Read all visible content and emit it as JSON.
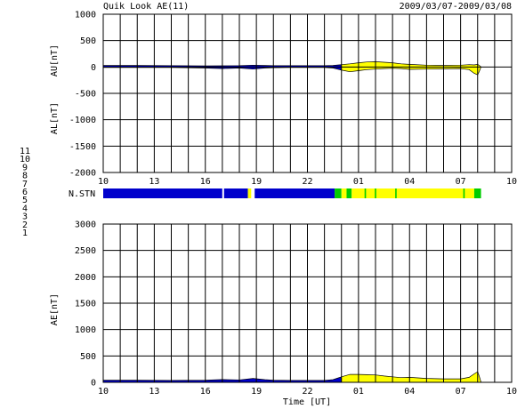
{
  "header": {
    "title": "Quik Look AE(11)",
    "date_range": "2009/03/07-2009/03/08"
  },
  "x_axis": {
    "label": "Time [UT]",
    "ticks": [
      "10",
      "13",
      "16",
      "19",
      "22",
      "01",
      "04",
      "07",
      "10"
    ]
  },
  "station_legend": {
    "items": [
      {
        "label": "11",
        "color": "#00d8ff"
      },
      {
        "label": "10",
        "color": "#ff00ff"
      },
      {
        "label": "9",
        "color": "#0000ff"
      },
      {
        "label": "8",
        "color": "#ffff66"
      },
      {
        "label": "7",
        "color": "#00cc00"
      },
      {
        "label": "6",
        "color": "#ff0000"
      },
      {
        "label": "5",
        "color": "#bbbbbb"
      },
      {
        "label": "4",
        "color": "#bbbbbb"
      },
      {
        "label": "3",
        "color": "#00bbbb"
      },
      {
        "label": "2",
        "color": "#cc00cc"
      },
      {
        "label": "1",
        "color": "#0000cc"
      }
    ]
  },
  "chart_data": [
    {
      "type": "area",
      "ylabels": [
        "AU[nT]",
        "AL[nT]"
      ],
      "yticks": [
        1000,
        500,
        0,
        -500,
        -1000,
        -1500,
        -2000
      ],
      "ylim": [
        -2000,
        1000
      ],
      "xlim": [
        10,
        34
      ],
      "grid": true,
      "colors": {
        "blue": "#0000cc",
        "yellow": "#ffff00",
        "green": "#00cc00"
      },
      "series": [
        {
          "x": [
            10,
            12,
            14,
            16,
            17,
            18,
            18.8,
            19.5,
            20,
            21,
            22,
            23,
            23.5,
            24,
            24.5,
            25,
            25.5,
            26,
            26.5,
            27,
            27.5,
            28,
            29,
            30,
            31,
            31.5,
            31.8,
            32,
            32.1,
            32.2
          ],
          "values": [
            30,
            30,
            25,
            20,
            22,
            25,
            35,
            30,
            25,
            25,
            25,
            25,
            30,
            45,
            60,
            80,
            95,
            100,
            90,
            80,
            60,
            50,
            35,
            30,
            35,
            45,
            40,
            50,
            30,
            0
          ]
        },
        {
          "x": [
            10,
            12,
            14,
            16,
            17,
            18,
            18.8,
            19.5,
            20,
            21,
            22,
            23,
            23.5,
            24,
            24.5,
            25,
            25.5,
            26,
            26.5,
            27,
            27.5,
            28,
            29,
            30,
            31,
            31.5,
            31.8,
            32,
            32.1,
            32.2
          ],
          "values": [
            -10,
            -10,
            -10,
            -20,
            -30,
            -20,
            -40,
            -20,
            -15,
            -10,
            -10,
            -10,
            -20,
            -60,
            -90,
            -70,
            -50,
            -40,
            -30,
            -25,
            -30,
            -45,
            -40,
            -35,
            -30,
            -50,
            -120,
            -150,
            -80,
            0
          ]
        }
      ],
      "station_segments": [
        {
          "x0": 10,
          "x1": 24.0,
          "color": "#0000cc"
        },
        {
          "x0": 24.0,
          "x1": 32.2,
          "color": "#ffff00"
        }
      ],
      "n_stn_bar": {
        "label": "N.STN",
        "segments": [
          {
            "x0": 10,
            "x1": 17.0,
            "color": "#0000cc"
          },
          {
            "x0": 17.0,
            "x1": 17.1,
            "color": "#ffffff"
          },
          {
            "x0": 17.1,
            "x1": 18.5,
            "color": "#0000cc"
          },
          {
            "x0": 18.5,
            "x1": 18.7,
            "color": "#ffff00"
          },
          {
            "x0": 18.7,
            "x1": 18.9,
            "color": "#ffffff"
          },
          {
            "x0": 18.9,
            "x1": 23.6,
            "color": "#0000cc"
          },
          {
            "x0": 23.6,
            "x1": 24.0,
            "color": "#00cc00"
          },
          {
            "x0": 24.0,
            "x1": 24.3,
            "color": "#ffff00"
          },
          {
            "x0": 24.3,
            "x1": 24.6,
            "color": "#00cc00"
          },
          {
            "x0": 24.6,
            "x1": 31.8,
            "color": "#ffff00"
          },
          {
            "x0": 31.8,
            "x1": 32.2,
            "color": "#00cc00"
          }
        ],
        "ticks": [
          {
            "x": 25.4,
            "color": "#00cc00"
          },
          {
            "x": 26.0,
            "color": "#00cc00"
          },
          {
            "x": 27.2,
            "color": "#00cc00"
          },
          {
            "x": 31.2,
            "color": "#00cc00"
          }
        ]
      }
    },
    {
      "type": "area",
      "ylabel": "AE[nT]",
      "yticks": [
        3000,
        2500,
        2000,
        1500,
        1000,
        500,
        0
      ],
      "ylim": [
        0,
        3000
      ],
      "xlim": [
        10,
        34
      ],
      "grid": true,
      "series": [
        {
          "x": [
            10,
            12,
            14,
            16,
            17,
            18,
            18.8,
            19.5,
            20,
            21,
            22,
            23,
            23.5,
            24,
            24.5,
            25,
            25.5,
            26,
            26.5,
            27,
            27.5,
            28,
            29,
            30,
            31,
            31.5,
            31.8,
            32,
            32.1,
            32.2
          ],
          "values": [
            40,
            40,
            35,
            40,
            52,
            45,
            75,
            50,
            40,
            35,
            35,
            35,
            50,
            105,
            150,
            150,
            145,
            140,
            120,
            105,
            90,
            95,
            75,
            65,
            65,
            95,
            160,
            200,
            110,
            0
          ]
        }
      ],
      "station_segments": [
        {
          "x0": 10,
          "x1": 24.0,
          "color": "#0000cc"
        },
        {
          "x0": 24.0,
          "x1": 32.2,
          "color": "#ffff00"
        }
      ]
    }
  ]
}
